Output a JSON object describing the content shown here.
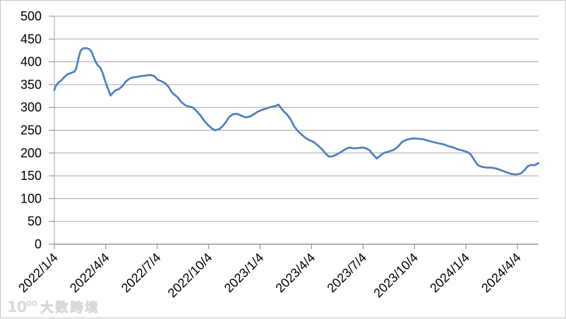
{
  "watermark": {
    "logo_main": "10",
    "logo_sup": "00",
    "brand": "大数跨境"
  },
  "chart_data": {
    "type": "line",
    "title": "",
    "xlabel": "",
    "ylabel": "",
    "legend_position": "none",
    "grid": true,
    "y_axis": {
      "min": 0,
      "max": 500,
      "step": 50,
      "tick_labels": [
        "0",
        "50",
        "100",
        "150",
        "200",
        "250",
        "300",
        "350",
        "400",
        "450",
        "500"
      ]
    },
    "x_axis": {
      "tick_labels": [
        "2022/1/4",
        "2022/4/4",
        "2022/7/4",
        "2022/10/4",
        "2023/1/4",
        "2023/4/4",
        "2023/7/4",
        "2023/10/4",
        "2024/1/4",
        "2024/4/4"
      ],
      "tick_positions": [
        0.0,
        0.1063,
        0.2125,
        0.3188,
        0.4251,
        0.5313,
        0.6376,
        0.7439,
        0.8501,
        0.9564
      ]
    },
    "series": [
      {
        "name": "series-1",
        "color": "#4F81BD",
        "points": [
          [
            0.0,
            338
          ],
          [
            0.004,
            349
          ],
          [
            0.009,
            355
          ],
          [
            0.015,
            360
          ],
          [
            0.02,
            366
          ],
          [
            0.026,
            372
          ],
          [
            0.033,
            375
          ],
          [
            0.041,
            378
          ],
          [
            0.045,
            385
          ],
          [
            0.05,
            408
          ],
          [
            0.054,
            424
          ],
          [
            0.06,
            430
          ],
          [
            0.066,
            430
          ],
          [
            0.072,
            428
          ],
          [
            0.077,
            422
          ],
          [
            0.081,
            411
          ],
          [
            0.085,
            401
          ],
          [
            0.089,
            393
          ],
          [
            0.095,
            387
          ],
          [
            0.1,
            375
          ],
          [
            0.105,
            358
          ],
          [
            0.11,
            343
          ],
          [
            0.116,
            326
          ],
          [
            0.121,
            332
          ],
          [
            0.127,
            338
          ],
          [
            0.133,
            340
          ],
          [
            0.141,
            347
          ],
          [
            0.147,
            356
          ],
          [
            0.155,
            363
          ],
          [
            0.163,
            366
          ],
          [
            0.172,
            367
          ],
          [
            0.181,
            369
          ],
          [
            0.19,
            370
          ],
          [
            0.198,
            371
          ],
          [
            0.206,
            369
          ],
          [
            0.213,
            361
          ],
          [
            0.222,
            357
          ],
          [
            0.229,
            353
          ],
          [
            0.236,
            345
          ],
          [
            0.242,
            334
          ],
          [
            0.248,
            328
          ],
          [
            0.255,
            322
          ],
          [
            0.262,
            312
          ],
          [
            0.27,
            305
          ],
          [
            0.277,
            302
          ],
          [
            0.286,
            300
          ],
          [
            0.293,
            293
          ],
          [
            0.302,
            282
          ],
          [
            0.31,
            270
          ],
          [
            0.318,
            261
          ],
          [
            0.325,
            254
          ],
          [
            0.332,
            250
          ],
          [
            0.34,
            252
          ],
          [
            0.347,
            258
          ],
          [
            0.354,
            267
          ],
          [
            0.361,
            279
          ],
          [
            0.369,
            285
          ],
          [
            0.377,
            286
          ],
          [
            0.386,
            282
          ],
          [
            0.395,
            278
          ],
          [
            0.404,
            280
          ],
          [
            0.412,
            285
          ],
          [
            0.421,
            291
          ],
          [
            0.43,
            295
          ],
          [
            0.439,
            298
          ],
          [
            0.447,
            301
          ],
          [
            0.456,
            303
          ],
          [
            0.463,
            306
          ],
          [
            0.468,
            299
          ],
          [
            0.474,
            291
          ],
          [
            0.481,
            284
          ],
          [
            0.488,
            274
          ],
          [
            0.495,
            259
          ],
          [
            0.503,
            248
          ],
          [
            0.51,
            241
          ],
          [
            0.519,
            233
          ],
          [
            0.527,
            228
          ],
          [
            0.536,
            224
          ],
          [
            0.545,
            216
          ],
          [
            0.554,
            207
          ],
          [
            0.561,
            198
          ],
          [
            0.568,
            192
          ],
          [
            0.575,
            193
          ],
          [
            0.584,
            197
          ],
          [
            0.593,
            203
          ],
          [
            0.602,
            209
          ],
          [
            0.61,
            212
          ],
          [
            0.619,
            210
          ],
          [
            0.628,
            211
          ],
          [
            0.637,
            212
          ],
          [
            0.644,
            210
          ],
          [
            0.651,
            206
          ],
          [
            0.658,
            197
          ],
          [
            0.666,
            188
          ],
          [
            0.673,
            194
          ],
          [
            0.68,
            200
          ],
          [
            0.69,
            203
          ],
          [
            0.701,
            207
          ],
          [
            0.709,
            213
          ],
          [
            0.718,
            224
          ],
          [
            0.727,
            229
          ],
          [
            0.735,
            231
          ],
          [
            0.744,
            232
          ],
          [
            0.753,
            231
          ],
          [
            0.763,
            230
          ],
          [
            0.772,
            227
          ],
          [
            0.783,
            224
          ],
          [
            0.794,
            221
          ],
          [
            0.804,
            219
          ],
          [
            0.814,
            215
          ],
          [
            0.824,
            212
          ],
          [
            0.834,
            208
          ],
          [
            0.845,
            205
          ],
          [
            0.853,
            202
          ],
          [
            0.86,
            197
          ],
          [
            0.866,
            187
          ],
          [
            0.874,
            174
          ],
          [
            0.882,
            170
          ],
          [
            0.893,
            168
          ],
          [
            0.903,
            168
          ],
          [
            0.913,
            166
          ],
          [
            0.923,
            162
          ],
          [
            0.933,
            158
          ],
          [
            0.944,
            154
          ],
          [
            0.954,
            153
          ],
          [
            0.963,
            155
          ],
          [
            0.971,
            162
          ],
          [
            0.978,
            171
          ],
          [
            0.986,
            174
          ],
          [
            0.992,
            173
          ],
          [
            1.0,
            178
          ]
        ]
      }
    ],
    "colors": {
      "line": "#4F81BD",
      "gridline": "#A6A6A6",
      "axis": "#808080",
      "tick_label": "#000000",
      "background": "#FFFFFF",
      "watermark": "#D7D7D7"
    }
  }
}
